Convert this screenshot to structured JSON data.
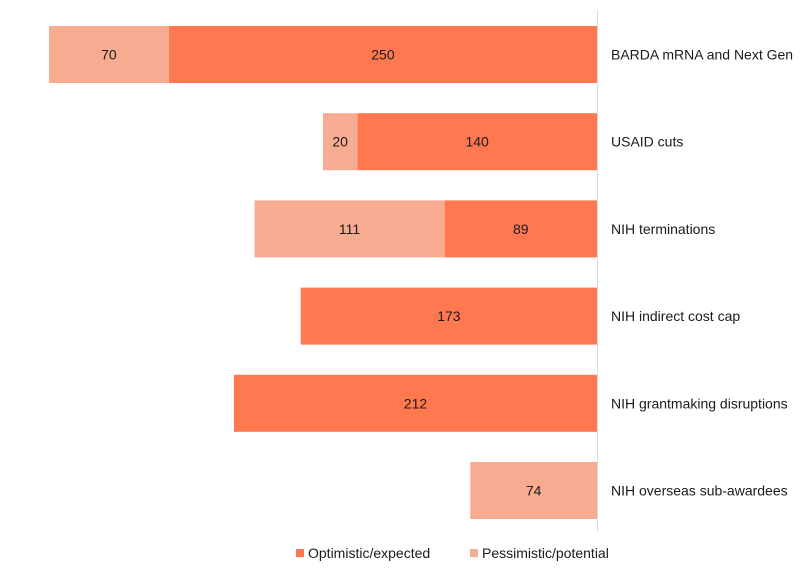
{
  "chart_data": {
    "type": "bar",
    "orientation": "horizontal-stacked",
    "categories": [
      "BARDA mRNA and Next Gen",
      "USAID cuts",
      "NIH terminations",
      "NIH indirect cost cap",
      "NIH grantmaking disruptions",
      "NIH overseas sub-awardees"
    ],
    "series": [
      {
        "name": "Optimistic/expected",
        "color": "#ff7850",
        "values": [
          250,
          140,
          89,
          173,
          212,
          0
        ]
      },
      {
        "name": "Pessimistic/potential",
        "color": "#f7ab90",
        "values": [
          70,
          20,
          111,
          0,
          0,
          74
        ]
      }
    ],
    "title": "",
    "xlabel": "",
    "ylabel": "",
    "xlim": [
      0,
      320
    ],
    "bar_direction": "right-to-left",
    "legend_position": "bottom"
  },
  "legend": {
    "items": [
      {
        "label": "Optimistic/expected",
        "color": "#ff7850"
      },
      {
        "label": "Pessimistic/potential",
        "color": "#f7ab90"
      }
    ]
  }
}
